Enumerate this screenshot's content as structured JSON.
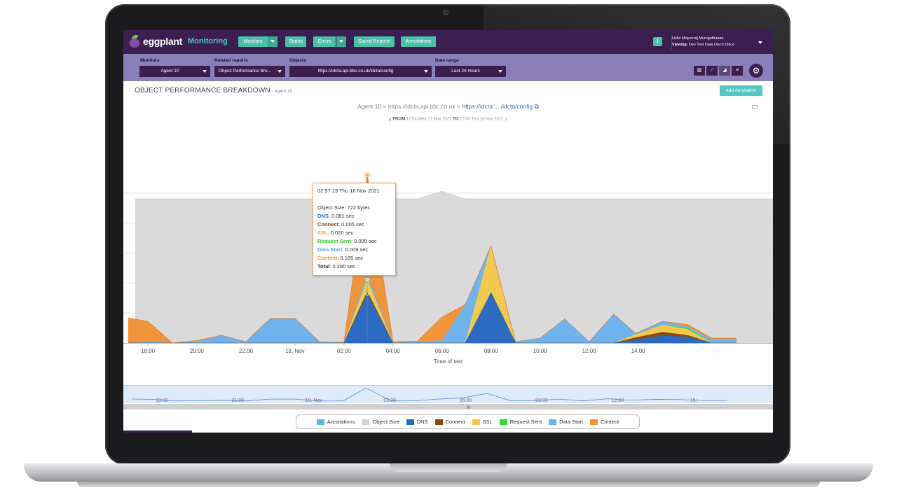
{
  "app": {
    "logo_text": "eggplant",
    "product": "Monitoring"
  },
  "nav": {
    "monitors": "Monitors",
    "status": "Status",
    "errors": "Errors",
    "saved_reports": "Saved Reports",
    "annotations": "Annotations",
    "info": "i"
  },
  "user": {
    "hello": "Hello Mayooraj Murugathasan",
    "viewing_label": "Viewing:",
    "viewing_value": "Dev Test Data Disco Disco"
  },
  "filters": {
    "monitors_label": "Monitors",
    "monitors_value": "Agent 10",
    "reports_label": "Related reports",
    "reports_value": "Object Performance Bre...",
    "objects_label": "Objects",
    "objects_value": "https://idcta.api.bbc.co.uk/idcta/config",
    "range_label": "Date range",
    "range_value": "Last 24 Hours"
  },
  "header": {
    "title": "OBJECT PERFORMANCE BREAKDOWN",
    "subtitle": "- Agent 10",
    "add_annotation": "Add Annotation"
  },
  "breadcrumb": {
    "agent": "Agent 10",
    "sep1": ">",
    "host": "https://idcta.api.bbc.co.uk",
    "sep2": ">",
    "path": "https://idcta...../idcta/config"
  },
  "range": {
    "from_label": "FROM",
    "from_value": "17:04 Wed 17 Nov 2021",
    "to_label": "TO",
    "to_value": "17:04 Thu 18 Nov 2021"
  },
  "tooltip": {
    "time": "02:57:19 Thu 18 Nov 2021",
    "object_size_label": "Object Size",
    "object_size_value": ": 722 bytes",
    "dns_label": "DNS",
    "dns_value": ": 0.081 sec",
    "connect_label": "Connect",
    "connect_value": ": 0.005 sec",
    "ssl_label": "SSL",
    "ssl_value": ": 0.020 sec",
    "request_label": "Request Sent",
    "request_value": ": 0.000 sec",
    "datastart_label": "Data Start",
    "datastart_value": ": 0.009 sec",
    "content_label": "Content",
    "content_value": ": 0.165 sec",
    "total_label": "Total",
    "total_value": ": 0.280 sec"
  },
  "colors": {
    "annotations": "#5bb8d9",
    "object_size": "#d4d4d4",
    "dns": "#2b6bc2",
    "connect": "#8a4b12",
    "ssl": "#f2c94c",
    "request_sent": "#39d639",
    "data_start": "#6fb3ee",
    "content": "#f2953a"
  },
  "chart_data": {
    "type": "area",
    "title": "Object Performance Breakdown",
    "xlabel": "Time of test",
    "ylabel": "",
    "x_ticks": [
      "18:00",
      "20:00",
      "22:00",
      "18. Nov",
      "02:00",
      "04:00",
      "06:00",
      "08:00",
      "10:00",
      "12:00",
      "14:00"
    ],
    "x": [
      17.2,
      18.0,
      19.0,
      20.0,
      21.0,
      22.0,
      23.0,
      24.0,
      25.0,
      26.0,
      26.95,
      28.0,
      29.0,
      30.0,
      30.95,
      32.0,
      33.0,
      34.0,
      35.0,
      36.0,
      37.0,
      37.9,
      39.0,
      40.0,
      41.0,
      42.0
    ],
    "ylim": [
      0,
      0.3
    ],
    "series": [
      {
        "name": "Object Size",
        "note": "background, plotted on secondary scale",
        "values": [
          722,
          722,
          722,
          722,
          722,
          722,
          722,
          722,
          722,
          722,
          722,
          722,
          722,
          760,
          722,
          722,
          722,
          722,
          722,
          722,
          722,
          722,
          722,
          722,
          722,
          722
        ]
      },
      {
        "name": "DNS",
        "values": [
          0,
          0,
          0,
          0,
          0,
          0,
          0,
          0,
          0,
          0,
          0.081,
          0,
          0,
          0,
          0,
          0.084,
          0,
          0,
          0,
          0,
          0,
          0.005,
          0.012,
          0.01,
          0,
          0
        ]
      },
      {
        "name": "Connect",
        "values": [
          0,
          0,
          0,
          0,
          0,
          0,
          0,
          0,
          0,
          0,
          0.005,
          0,
          0,
          0,
          0,
          0,
          0,
          0,
          0,
          0,
          0,
          0.004,
          0.006,
          0.003,
          0,
          0
        ]
      },
      {
        "name": "SSL",
        "values": [
          0,
          0,
          0,
          0,
          0,
          0,
          0,
          0,
          0,
          0,
          0.02,
          0,
          0,
          0,
          0,
          0.078,
          0,
          0,
          0,
          0,
          0,
          0.005,
          0.012,
          0.01,
          0,
          0
        ]
      },
      {
        "name": "Request Sent",
        "values": [
          0,
          0,
          0,
          0,
          0,
          0,
          0,
          0,
          0,
          0,
          0,
          0,
          0,
          0,
          0,
          0,
          0,
          0,
          0,
          0,
          0,
          0,
          0,
          0.002,
          0,
          0
        ]
      },
      {
        "name": "Data Start",
        "values": [
          0,
          0.002,
          0,
          0.002,
          0.012,
          0.002,
          0.04,
          0.04,
          0.002,
          0,
          0.009,
          0,
          0.002,
          0.004,
          0.064,
          0,
          0.002,
          0.008,
          0.04,
          0.002,
          0.048,
          0.002,
          0.006,
          0.002,
          0.006,
          0.006
        ]
      },
      {
        "name": "Content",
        "values": [
          0.042,
          0.034,
          0,
          0.002,
          0.001,
          0,
          0.001,
          0.001,
          0,
          0.001,
          0.165,
          0.002,
          0.001,
          0.039,
          0,
          0,
          0,
          0,
          0,
          0,
          0,
          0,
          0,
          0.004,
          0.002,
          0.002
        ]
      }
    ],
    "navigator_ticks": [
      "18:00",
      "21:00",
      "18. Nov",
      "03:00",
      "06:00",
      "09:00",
      "12:00",
      "15:"
    ],
    "legend": [
      "Annotations",
      "Object Size",
      "DNS",
      "Connect",
      "SSL",
      "Request Sent",
      "Data Start",
      "Content"
    ]
  }
}
